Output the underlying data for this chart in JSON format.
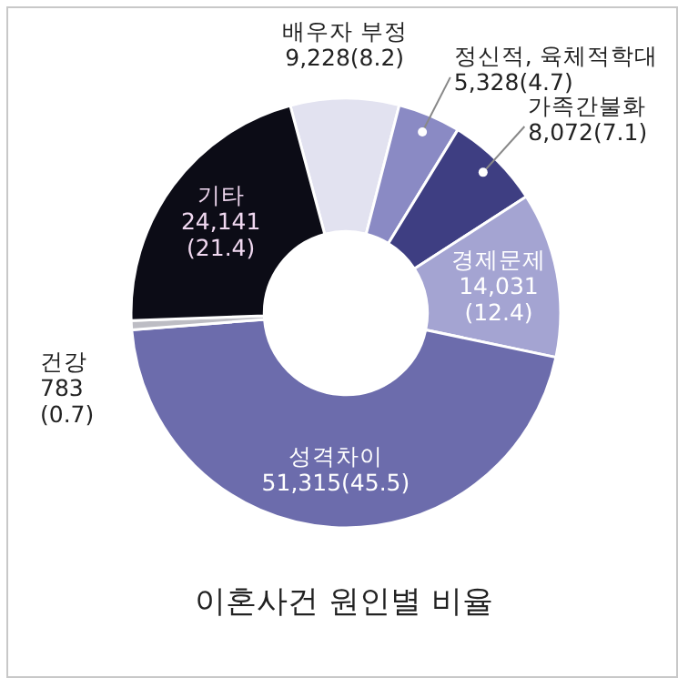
{
  "chart_data": {
    "type": "donut",
    "title": "이혼사건 원인별 비율",
    "categories": [
      "배우자 부정",
      "정신적, 육체적학대",
      "가족간불화",
      "경제문제",
      "성격차이",
      "건강",
      "기타"
    ],
    "values": [
      9228,
      5328,
      8072,
      14031,
      51315,
      783,
      24141
    ],
    "value_labels": [
      "9,228(8.2)",
      "5,328(4.7)",
      "8,072(7.1)",
      "14,031 (12.4)",
      "51,315(45.5)",
      "783 (0.7)",
      "24,141 (21.4)"
    ],
    "colors": [
      "#e2e2f0",
      "#8a8ac4",
      "#3e3e82",
      "#a4a4d2",
      "#6c6cac",
      "#bdbdc4",
      "#0c0c16"
    ]
  }
}
